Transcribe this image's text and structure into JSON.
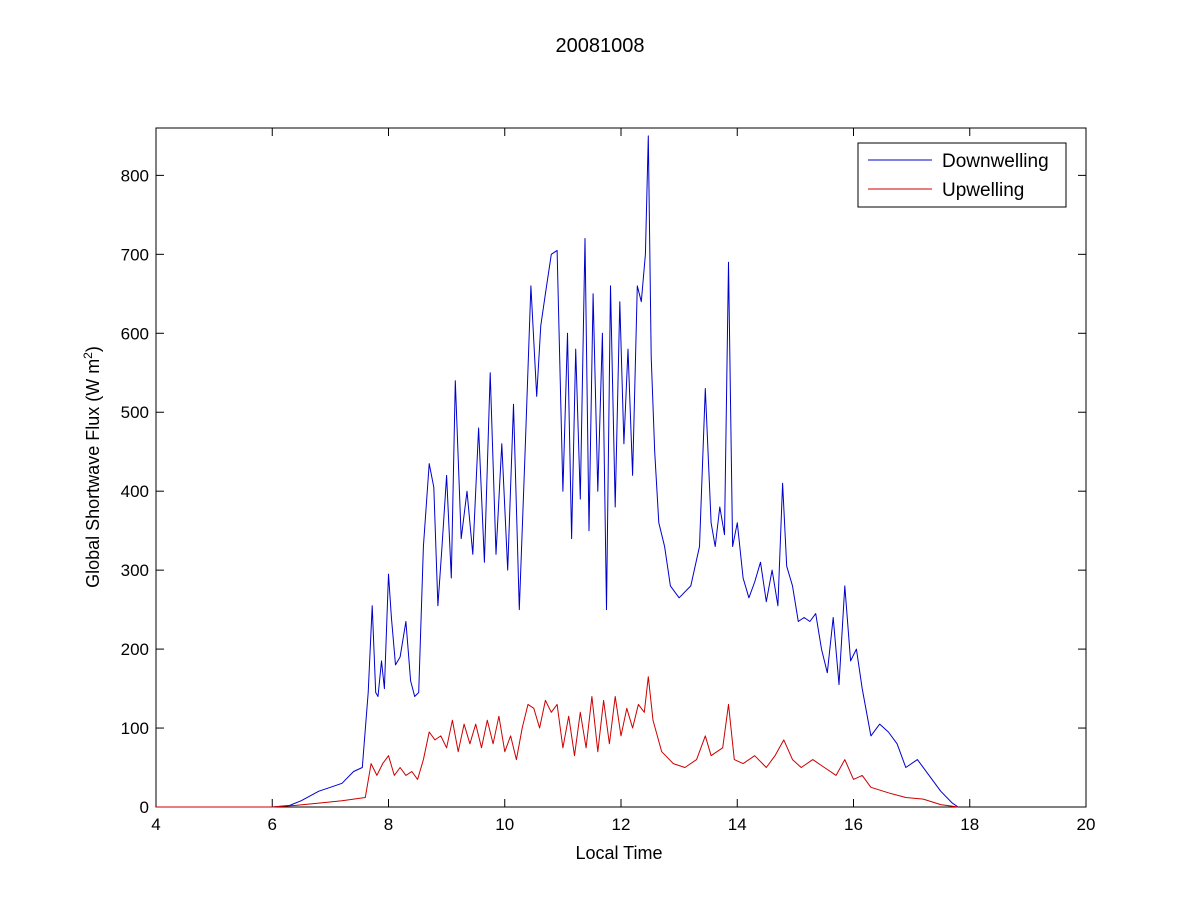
{
  "chart_data": {
    "type": "line",
    "title": "20081008",
    "xlabel": "Local Time",
    "ylabel": "Global Shortwave Flux (W m",
    "ylabel_sup": "2",
    "ylabel_end": ")",
    "xlim": [
      4,
      20
    ],
    "ylim": [
      0,
      860
    ],
    "xticks": [
      4,
      6,
      8,
      10,
      12,
      14,
      16,
      18,
      20
    ],
    "yticks": [
      0,
      100,
      200,
      300,
      400,
      500,
      600,
      700,
      800
    ],
    "grid": false,
    "legend_position": "top-right",
    "series": [
      {
        "name": "Downwelling",
        "color": "#0000cc",
        "x": [
          4.0,
          4.8,
          6.0,
          6.3,
          6.5,
          6.8,
          7.0,
          7.2,
          7.4,
          7.55,
          7.65,
          7.72,
          7.78,
          7.82,
          7.88,
          7.93,
          8.0,
          8.05,
          8.12,
          8.2,
          8.3,
          8.38,
          8.45,
          8.52,
          8.6,
          8.7,
          8.78,
          8.85,
          8.92,
          9.0,
          9.08,
          9.15,
          9.25,
          9.35,
          9.45,
          9.55,
          9.65,
          9.75,
          9.85,
          9.95,
          10.05,
          10.15,
          10.25,
          10.35,
          10.45,
          10.55,
          10.62,
          10.7,
          10.8,
          10.9,
          11.0,
          11.08,
          11.15,
          11.22,
          11.3,
          11.38,
          11.45,
          11.52,
          11.6,
          11.68,
          11.75,
          11.82,
          11.9,
          11.98,
          12.05,
          12.12,
          12.2,
          12.28,
          12.35,
          12.42,
          12.47,
          12.52,
          12.58,
          12.65,
          12.75,
          12.85,
          13.0,
          13.2,
          13.35,
          13.45,
          13.55,
          13.62,
          13.7,
          13.78,
          13.85,
          13.92,
          14.0,
          14.1,
          14.2,
          14.3,
          14.4,
          14.5,
          14.6,
          14.7,
          14.78,
          14.85,
          14.95,
          15.05,
          15.15,
          15.25,
          15.35,
          15.45,
          15.55,
          15.65,
          15.75,
          15.85,
          15.95,
          16.05,
          16.15,
          16.3,
          16.45,
          16.6,
          16.75,
          16.9,
          17.1,
          17.3,
          17.5,
          17.7,
          17.8
        ],
        "y": [
          0,
          0,
          0,
          2,
          8,
          20,
          25,
          30,
          45,
          50,
          145,
          255,
          145,
          140,
          185,
          150,
          295,
          240,
          180,
          190,
          235,
          160,
          140,
          145,
          330,
          435,
          405,
          255,
          330,
          420,
          290,
          540,
          340,
          400,
          320,
          480,
          310,
          550,
          320,
          460,
          300,
          510,
          250,
          450,
          660,
          520,
          610,
          650,
          700,
          705,
          400,
          600,
          340,
          580,
          390,
          720,
          350,
          650,
          400,
          600,
          250,
          660,
          380,
          640,
          460,
          580,
          420,
          660,
          640,
          700,
          850,
          570,
          450,
          360,
          330,
          280,
          265,
          280,
          330,
          530,
          360,
          330,
          380,
          345,
          690,
          330,
          360,
          290,
          265,
          285,
          310,
          260,
          300,
          255,
          410,
          305,
          280,
          235,
          240,
          235,
          245,
          200,
          170,
          240,
          155,
          280,
          185,
          200,
          150,
          90,
          105,
          95,
          80,
          50,
          60,
          40,
          20,
          5,
          0
        ]
      },
      {
        "name": "Upwelling",
        "color": "#cc0000",
        "x": [
          4.0,
          4.8,
          6.0,
          6.4,
          6.8,
          7.2,
          7.6,
          7.7,
          7.8,
          7.9,
          8.0,
          8.1,
          8.2,
          8.3,
          8.4,
          8.5,
          8.6,
          8.7,
          8.8,
          8.9,
          9.0,
          9.1,
          9.2,
          9.3,
          9.4,
          9.5,
          9.6,
          9.7,
          9.8,
          9.9,
          10.0,
          10.1,
          10.2,
          10.3,
          10.4,
          10.5,
          10.6,
          10.7,
          10.8,
          10.9,
          11.0,
          11.1,
          11.2,
          11.3,
          11.4,
          11.5,
          11.6,
          11.7,
          11.8,
          11.9,
          12.0,
          12.1,
          12.2,
          12.3,
          12.4,
          12.47,
          12.55,
          12.7,
          12.9,
          13.1,
          13.3,
          13.45,
          13.55,
          13.65,
          13.75,
          13.85,
          13.95,
          14.1,
          14.3,
          14.5,
          14.65,
          14.8,
          14.95,
          15.1,
          15.3,
          15.5,
          15.7,
          15.85,
          16.0,
          16.15,
          16.3,
          16.6,
          16.9,
          17.2,
          17.5,
          17.8
        ],
        "y": [
          0,
          0,
          0,
          2,
          5,
          8,
          12,
          55,
          40,
          55,
          65,
          40,
          50,
          40,
          45,
          35,
          60,
          95,
          85,
          90,
          75,
          110,
          70,
          105,
          80,
          105,
          75,
          110,
          80,
          115,
          70,
          90,
          60,
          100,
          130,
          125,
          100,
          135,
          120,
          130,
          75,
          115,
          65,
          120,
          75,
          140,
          70,
          135,
          80,
          140,
          90,
          125,
          100,
          130,
          120,
          165,
          110,
          70,
          55,
          50,
          60,
          90,
          65,
          70,
          75,
          130,
          60,
          55,
          65,
          50,
          65,
          85,
          60,
          50,
          60,
          50,
          40,
          60,
          35,
          40,
          25,
          18,
          12,
          10,
          3,
          0
        ]
      }
    ]
  }
}
